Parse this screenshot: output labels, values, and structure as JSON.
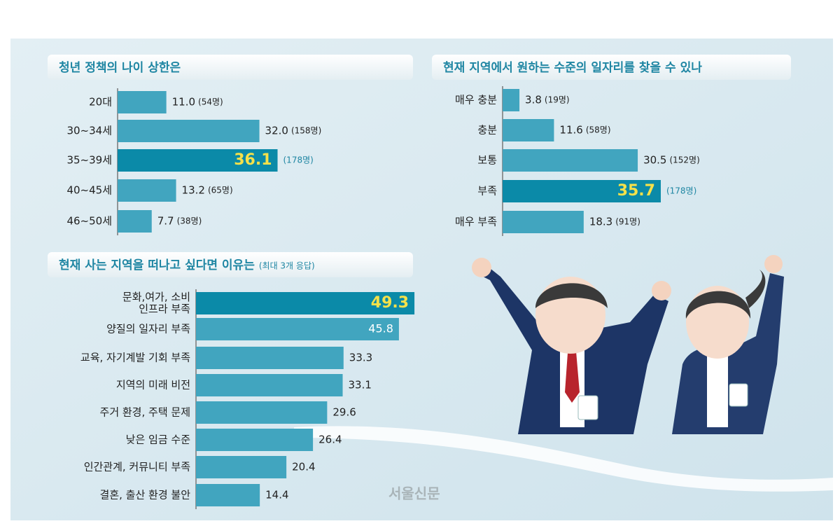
{
  "chart_data": [
    {
      "type": "bar",
      "orientation": "horizontal",
      "title": "청년 정책의 나이 상한은",
      "categories": [
        "20대",
        "30~34세",
        "35~39세",
        "40~45세",
        "46~50세"
      ],
      "values": [
        11.0,
        32.0,
        36.1,
        13.2,
        7.7
      ],
      "value_labels": [
        "11.0",
        "32.0",
        "36.1",
        "13.2",
        "7.7"
      ],
      "counts": [
        "(54명)",
        "(158명)",
        "(178명)",
        "(65명)",
        "(38명)"
      ],
      "highlight": [
        2
      ],
      "color": "#41a5bf",
      "highlight_color": "#0b8aa8"
    },
    {
      "type": "bar",
      "orientation": "horizontal",
      "title": "현재 지역에서 원하는 수준의 일자리를 찾을 수 있나",
      "categories": [
        "매우 충분",
        "충분",
        "보통",
        "부족",
        "매우 부족"
      ],
      "values": [
        3.8,
        11.6,
        30.5,
        35.7,
        18.3
      ],
      "counts": [
        "(19명)",
        "(58명)",
        "(152명)",
        "(178명)",
        "(91명)"
      ],
      "highlight": [
        3
      ],
      "color": "#41a5bf",
      "highlight_color": "#0b8aa8"
    },
    {
      "type": "bar",
      "orientation": "horizontal",
      "title": "현재 사는 지역을 떠나고 싶다면 이유는",
      "subtitle": "(최대 3개 응답)",
      "categories": [
        [
          "문화,여가, 소비",
          "인프라 부족"
        ],
        "양질의 일자리 부족",
        "교육, 자기계발 기회 부족",
        "지역의 미래 비전",
        "주거 환경, 주택 문제",
        "낮은 임금 수준",
        "인간관계, 커뮤니티 부족",
        "결혼, 출산 환경 불안"
      ],
      "values": [
        49.3,
        45.8,
        33.3,
        33.1,
        29.6,
        26.4,
        20.4,
        14.4
      ],
      "highlight": [
        0
      ],
      "color": "#41a5bf",
      "highlight_color": "#0b8aa8"
    }
  ],
  "source": "서울신문"
}
